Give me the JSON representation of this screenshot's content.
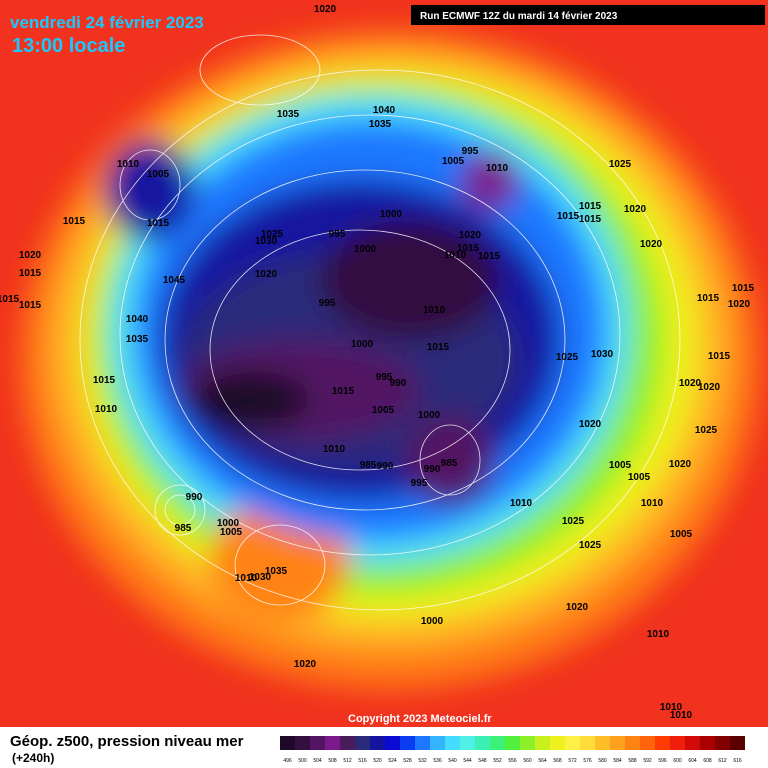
{
  "header": {
    "date": "vendredi 24 février 2023",
    "time": "13:00 locale",
    "run": "Run ECMWF 12Z du mardi 14 février 2023"
  },
  "footer": {
    "field": "Géop. z500, pression niveau mer",
    "lead": "(+240h)",
    "copyright": "Copyright 2023 Meteociel.fr"
  },
  "isobar_labels": [
    "1020",
    "1035",
    "1040",
    "1035",
    "1010",
    "1005",
    "1015",
    "1015",
    "1030",
    "1025",
    "995",
    "1000",
    "1000",
    "1005",
    "995",
    "1010",
    "1020",
    "1010",
    "1015",
    "1015",
    "1025",
    "1015",
    "1015",
    "1015",
    "1020",
    "1020",
    "1020",
    "1015",
    "1015",
    "1015",
    "1045",
    "1020",
    "995",
    "1040",
    "1035",
    "1010",
    "1000",
    "1015",
    "995",
    "990",
    "1015",
    "1005",
    "1000",
    "1015",
    "1010",
    "1025",
    "1030",
    "1015",
    "1020",
    "1015",
    "1015",
    "1020",
    "1020",
    "1020",
    "1025",
    "1010",
    "985",
    "990",
    "990",
    "985",
    "995",
    "1010",
    "1005",
    "1005",
    "1020",
    "1010",
    "990",
    "985",
    "1000",
    "1005",
    "1025",
    "1025",
    "1005",
    "1035",
    "1030",
    "1010",
    "1020",
    "1000",
    "1010",
    "1020",
    "1010",
    "1010"
  ],
  "colorbar": {
    "values": [
      496,
      500,
      504,
      508,
      512,
      516,
      520,
      524,
      528,
      532,
      536,
      540,
      544,
      548,
      552,
      556,
      560,
      564,
      568,
      572,
      576,
      580,
      584,
      588,
      592,
      596,
      600,
      604,
      608,
      612,
      616
    ],
    "colors": [
      "#1e0a28",
      "#33103f",
      "#531463",
      "#7a1a8c",
      "#4b1c5c",
      "#2a2a7a",
      "#1414a0",
      "#0a0ad0",
      "#0a3cf0",
      "#1e78ff",
      "#32b4ff",
      "#46dcff",
      "#50f0e6",
      "#3cf0b4",
      "#3cf078",
      "#50f03c",
      "#8cf028",
      "#c8f01e",
      "#f0f01e",
      "#fff046",
      "#ffdc3c",
      "#ffbe28",
      "#ffa01e",
      "#ff8214",
      "#ff640a",
      "#ff3c00",
      "#f01e0a",
      "#d20a0a",
      "#aa0000",
      "#820000",
      "#5a0000"
    ]
  }
}
